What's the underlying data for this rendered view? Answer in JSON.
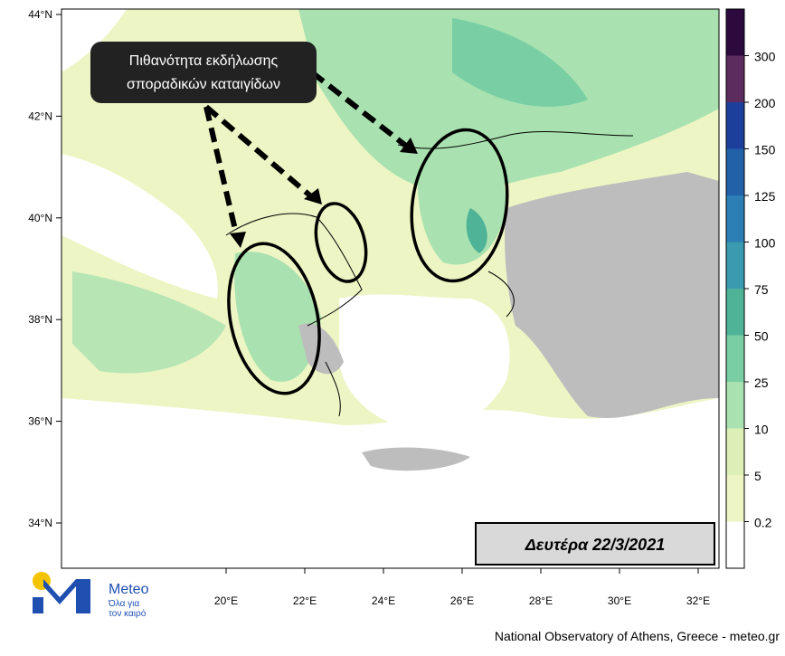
{
  "map": {
    "annotation": [
      "Πιθανότητα εκδήλωσης",
      "σποραδικών καταιγίδων"
    ],
    "date_label": "Δευτέρα 22/3/2021",
    "lat_labels": [
      "44°N",
      "42°N",
      "40°N",
      "38°N",
      "36°N",
      "34°N"
    ],
    "lon_labels": [
      "20°E",
      "22°E",
      "24°E",
      "26°E",
      "28°E",
      "30°E",
      "32°E"
    ],
    "colorbar": {
      "labels": [
        "0.2",
        "5",
        "10",
        "25",
        "50",
        "75",
        "100",
        "125",
        "150",
        "200",
        "300"
      ],
      "colors": [
        "#ffffff",
        "#eef5c4",
        "#dcefb6",
        "#a9e2b0",
        "#79cfa3",
        "#4fb397",
        "#3a9bb0",
        "#2b7fb5",
        "#2260a8",
        "#1d3f9c",
        "#5c2c5e",
        "#2c0a3e"
      ]
    },
    "logo": {
      "name": "Meteo",
      "tagline": [
        "Όλα για",
        "τον καιρό"
      ]
    },
    "footer": "National Observatory of Athens, Greece - meteo.gr"
  }
}
